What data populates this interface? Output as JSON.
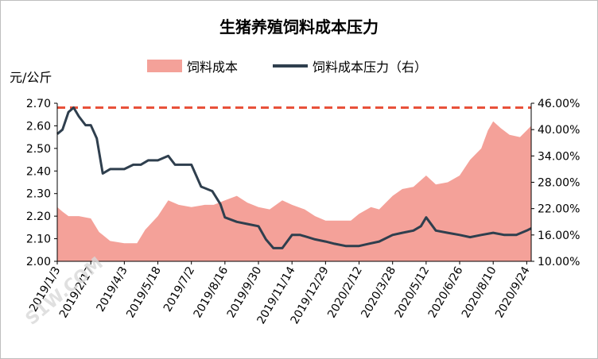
{
  "chart_data": {
    "type": "area+line",
    "title": "生猪养殖饲料成本压力",
    "left_unit": "元/公斤",
    "legend": [
      {
        "name": "饲料成本",
        "kind": "area",
        "color": "#f4a199"
      },
      {
        "name": "饲料成本压力（右）",
        "kind": "line",
        "color": "#2f3f4e"
      }
    ],
    "x_tick_labels": [
      "2019/1/3",
      "2019/2/17",
      "2019/4/3",
      "2019/5/18",
      "2019/7/2",
      "2019/8/16",
      "2019/9/30",
      "2019/11/14",
      "2019/12/29",
      "2020/2/12",
      "2020/3/28",
      "2020/5/12",
      "2020/6/26",
      "2020/8/10",
      "2020/9/24"
    ],
    "left_axis": {
      "min": 2.0,
      "max": 2.7,
      "ticks": [
        "2.00",
        "2.10",
        "2.20",
        "2.30",
        "2.40",
        "2.50",
        "2.60",
        "2.70"
      ]
    },
    "right_axis": {
      "min": 0.1,
      "max": 0.46,
      "ticks": [
        "10.00%",
        "16.00%",
        "22.00%",
        "28.00%",
        "34.00%",
        "40.00%",
        "46.00%"
      ]
    },
    "threshold_right": 0.45,
    "threshold_color": "#e8513a",
    "series_feed_cost": {
      "x": [
        "2019/1/3",
        "2019/1/10",
        "2019/1/18",
        "2019/2/1",
        "2019/2/17",
        "2019/2/28",
        "2019/3/15",
        "2019/4/3",
        "2019/4/20",
        "2019/5/1",
        "2019/5/18",
        "2019/6/1",
        "2019/6/15",
        "2019/7/2",
        "2019/7/20",
        "2019/8/1",
        "2019/8/16",
        "2019/9/1",
        "2019/9/15",
        "2019/9/30",
        "2019/10/15",
        "2019/11/1",
        "2019/11/14",
        "2019/12/1",
        "2019/12/15",
        "2019/12/29",
        "2020/1/15",
        "2020/2/1",
        "2020/2/12",
        "2020/2/28",
        "2020/3/10",
        "2020/3/28",
        "2020/4/10",
        "2020/4/25",
        "2020/5/12",
        "2020/5/25",
        "2020/6/10",
        "2020/6/26",
        "2020/7/10",
        "2020/7/25",
        "2020/8/3",
        "2020/8/10",
        "2020/8/20",
        "2020/9/1",
        "2020/9/15",
        "2020/9/24",
        "2020/9/30"
      ],
      "values": [
        2.24,
        2.22,
        2.2,
        2.2,
        2.19,
        2.13,
        2.09,
        2.08,
        2.08,
        2.14,
        2.2,
        2.27,
        2.25,
        2.24,
        2.25,
        2.25,
        2.27,
        2.29,
        2.26,
        2.24,
        2.23,
        2.27,
        2.25,
        2.23,
        2.2,
        2.18,
        2.18,
        2.18,
        2.21,
        2.24,
        2.23,
        2.29,
        2.32,
        2.33,
        2.38,
        2.34,
        2.35,
        2.38,
        2.45,
        2.5,
        2.58,
        2.62,
        2.59,
        2.56,
        2.55,
        2.58,
        2.6
      ]
    },
    "series_feed_pressure": {
      "x": [
        "2019/1/3",
        "2019/1/10",
        "2019/1/18",
        "2019/1/25",
        "2019/2/1",
        "2019/2/10",
        "2019/2/17",
        "2019/2/25",
        "2019/3/5",
        "2019/3/15",
        "2019/3/25",
        "2019/4/3",
        "2019/4/15",
        "2019/4/25",
        "2019/5/5",
        "2019/5/18",
        "2019/6/1",
        "2019/6/10",
        "2019/6/20",
        "2019/7/2",
        "2019/7/15",
        "2019/7/30",
        "2019/8/10",
        "2019/8/16",
        "2019/9/1",
        "2019/9/15",
        "2019/9/30",
        "2019/10/10",
        "2019/10/20",
        "2019/11/1",
        "2019/11/14",
        "2019/11/25",
        "2019/12/5",
        "2019/12/15",
        "2019/12/29",
        "2020/1/10",
        "2020/1/25",
        "2020/2/12",
        "2020/2/25",
        "2020/3/10",
        "2020/3/28",
        "2020/4/10",
        "2020/4/25",
        "2020/5/5",
        "2020/5/12",
        "2020/5/25",
        "2020/6/10",
        "2020/6/26",
        "2020/7/10",
        "2020/7/25",
        "2020/8/10",
        "2020/8/25",
        "2020/9/10",
        "2020/9/24",
        "2020/9/30"
      ],
      "values": [
        0.39,
        0.4,
        0.44,
        0.45,
        0.43,
        0.41,
        0.41,
        0.38,
        0.3,
        0.31,
        0.31,
        0.31,
        0.32,
        0.32,
        0.33,
        0.33,
        0.34,
        0.32,
        0.32,
        0.32,
        0.27,
        0.26,
        0.23,
        0.2,
        0.19,
        0.185,
        0.18,
        0.15,
        0.13,
        0.13,
        0.16,
        0.16,
        0.155,
        0.15,
        0.145,
        0.14,
        0.135,
        0.135,
        0.14,
        0.145,
        0.16,
        0.165,
        0.17,
        0.18,
        0.2,
        0.17,
        0.165,
        0.16,
        0.155,
        0.16,
        0.165,
        0.16,
        0.16,
        0.17,
        0.175
      ]
    }
  },
  "watermark": "S1W.COM"
}
